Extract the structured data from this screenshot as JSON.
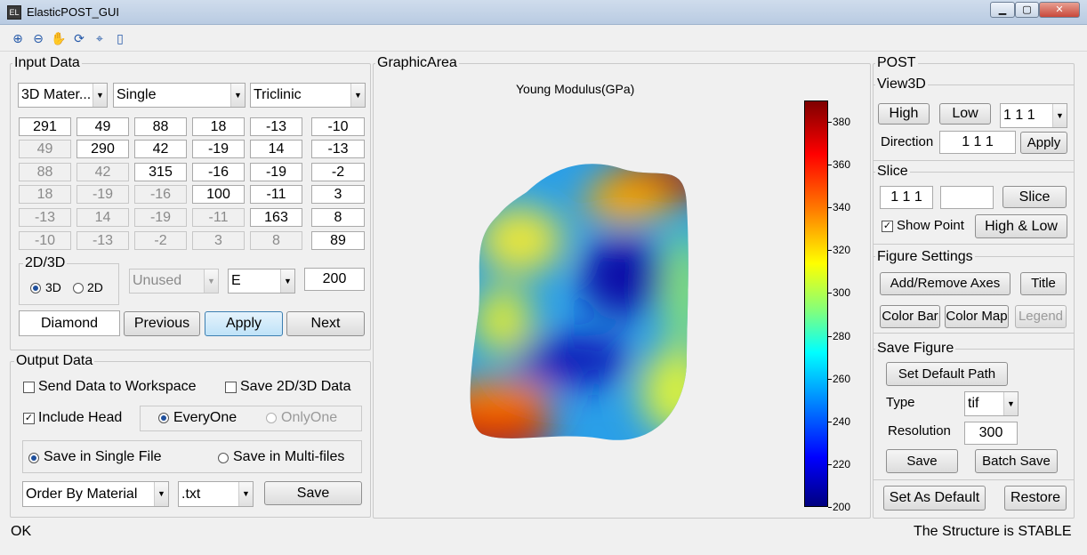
{
  "window": {
    "title": "ElasticPOST_GUI",
    "app_icon_glyph": "EL",
    "min_glyph": "▁",
    "max_glyph": "▢",
    "close_glyph": "✕"
  },
  "toolbar": {
    "icons": [
      "zoom-in-icon",
      "zoom-out-icon",
      "pan-hand-icon",
      "rotate-3d-icon",
      "data-cursor-icon",
      "colorbar-icon"
    ],
    "glyphs": [
      "⊕",
      "⊖",
      "✋",
      "⟳",
      "⌖",
      "▯"
    ]
  },
  "input_data": {
    "title": "Input Data",
    "material_select": "3D Mater...",
    "type_select": "Single",
    "symmetry_select": "Triclinic",
    "matrix": [
      [
        "291",
        "49",
        "88",
        "18",
        "-13",
        "-10"
      ],
      [
        "49",
        "290",
        "42",
        "-19",
        "14",
        "-13"
      ],
      [
        "88",
        "42",
        "315",
        "-16",
        "-19",
        "-2"
      ],
      [
        "18",
        "-19",
        "-16",
        "100",
        "-11",
        "3"
      ],
      [
        "-13",
        "14",
        "-19",
        "-11",
        "163",
        "8"
      ],
      [
        "-10",
        "-13",
        "-2",
        "3",
        "8",
        "89"
      ]
    ],
    "dim_group": {
      "title": "2D/3D",
      "option_3d": "3D",
      "option_2d": "2D",
      "selected": "3D"
    },
    "unused_select": "Unused",
    "property_select": "E",
    "value_input": "200",
    "name_input": "Diamond",
    "previous_label": "Previous",
    "apply_label": "Apply",
    "next_label": "Next"
  },
  "output_data": {
    "title": "Output Data",
    "send_workspace": {
      "label": "Send Data to Workspace",
      "checked": false
    },
    "save_2d3d": {
      "label": "Save 2D/3D Data",
      "checked": false
    },
    "include_head": {
      "label": "Include Head",
      "checked": true
    },
    "every_one": "EveryOne",
    "only_one": "OnlyOne",
    "single_file": "Save in Single File",
    "multi_files": "Save in Multi-files",
    "order_select": "Order By Material",
    "ext_select": ".txt",
    "save_label": "Save"
  },
  "graphic": {
    "title": "GraphicArea",
    "plot_title": "Young Modulus(GPa)",
    "colorbar_ticks": [
      "380",
      "360",
      "340",
      "320",
      "300",
      "280",
      "260",
      "240",
      "220",
      "200"
    ],
    "colorbar_range": [
      200,
      390
    ]
  },
  "post": {
    "title": "POST",
    "view3d": {
      "title": "View3D",
      "high_label": "High",
      "low_label": "Low",
      "dir_select": "1 1 1",
      "direction_label": "Direction",
      "direction_input": "1 1 1",
      "apply_label": "Apply"
    },
    "slice": {
      "title": "Slice",
      "plane_input": "1 1 1",
      "extra_input": "",
      "slice_label": "Slice",
      "show_point": {
        "label": "Show Point",
        "checked": true
      },
      "high_low_label": "High & Low"
    },
    "figure_settings": {
      "title": "Figure Settings",
      "axes_label": "Add/Remove Axes",
      "title_label": "Title",
      "color_bar_label": "Color Bar",
      "color_map_label": "Color Map",
      "legend_label": "Legend"
    },
    "save_figure": {
      "title": "Save Figure",
      "default_path_label": "Set Default Path",
      "type_label": "Type",
      "type_select": "tif",
      "resolution_label": "Resolution",
      "resolution_input": "300",
      "save_label": "Save",
      "batch_save_label": "Batch Save"
    },
    "set_default_label": "Set As Default",
    "restore_label": "Restore"
  },
  "status": {
    "left": "OK",
    "right": "The Structure is STABLE"
  },
  "colors": {
    "jet_top": "#7f0000",
    "jet_bottom": "#00007f",
    "accent": "#3c7fb1"
  }
}
